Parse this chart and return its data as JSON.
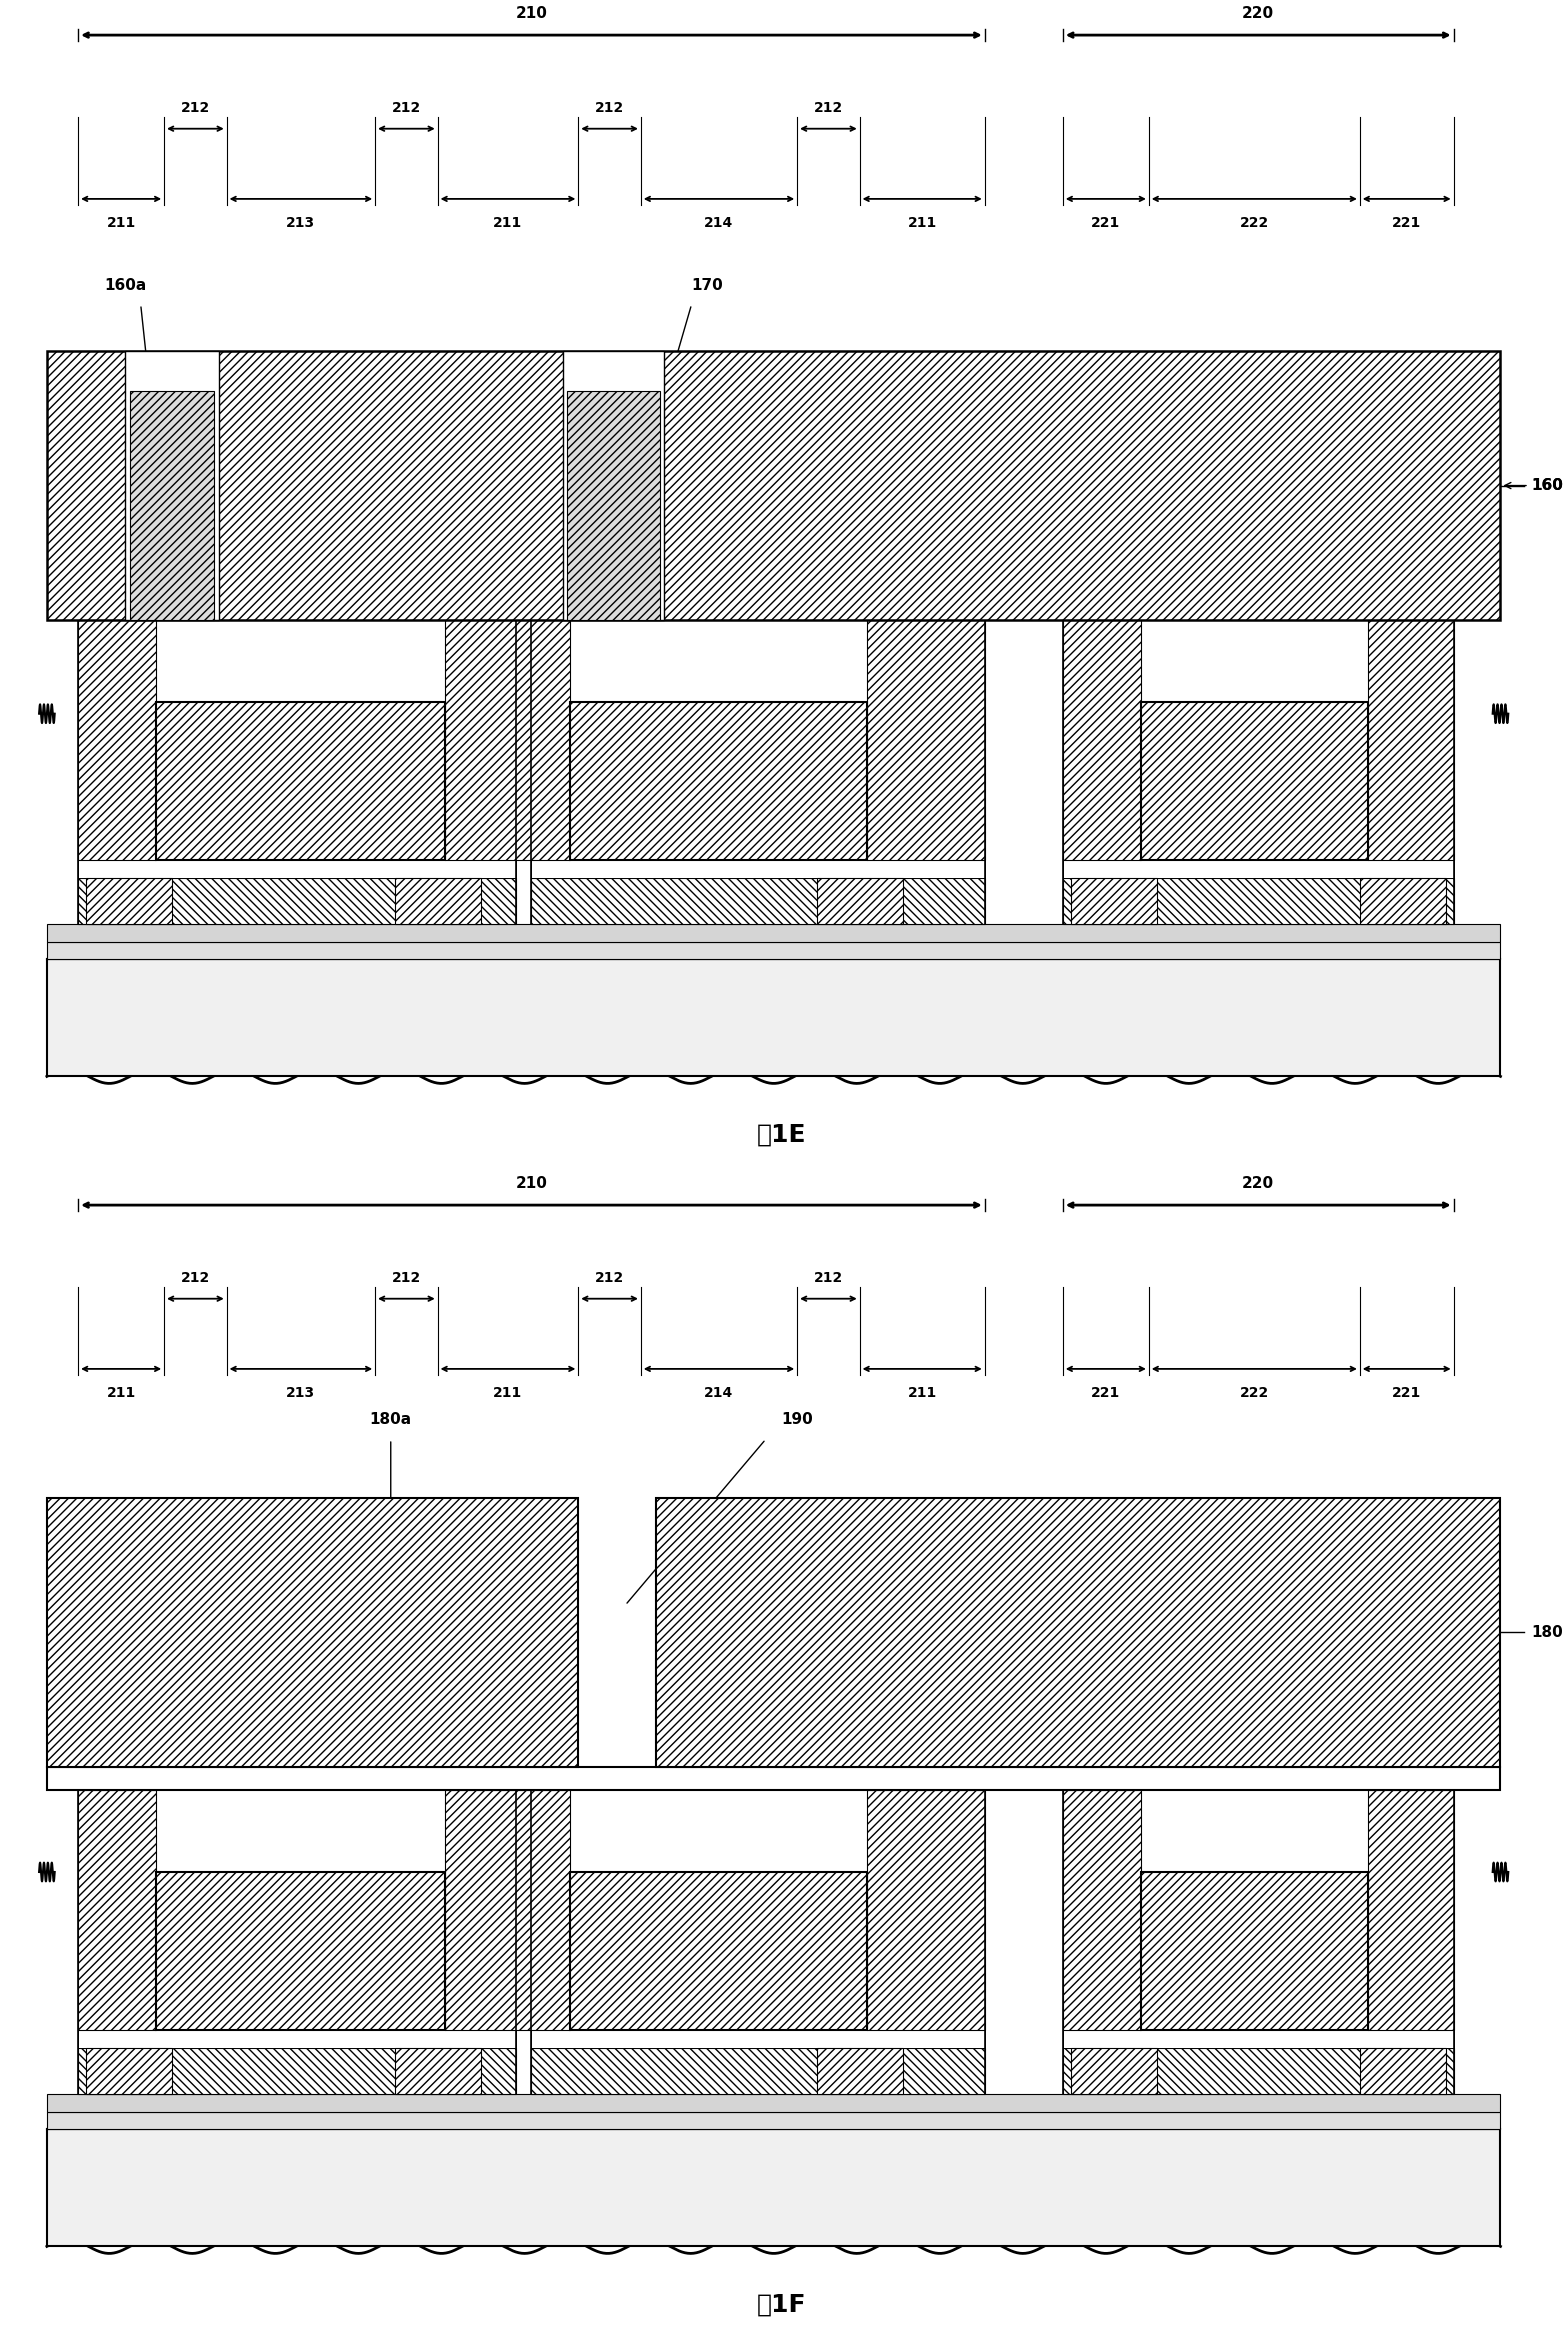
{
  "fig_width": 15.63,
  "fig_height": 23.4,
  "bg_color": "#ffffff",
  "title1": "图1E",
  "title2": "图1F",
  "dim_fontsize": 11,
  "sub_dim_fontsize": 10,
  "label_fontsize": 11,
  "caption_fontsize": 18
}
